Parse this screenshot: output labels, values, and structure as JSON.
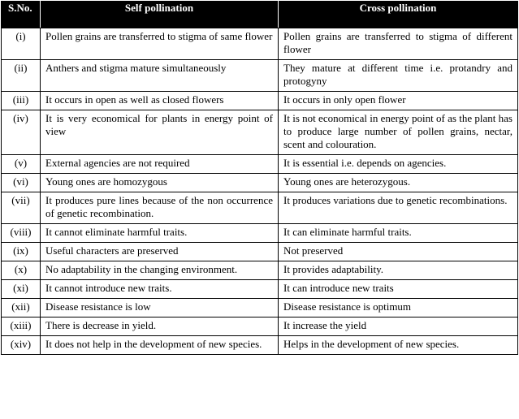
{
  "table": {
    "headers": [
      "S.No.",
      "Self  pollination",
      "Cross pollination"
    ],
    "rows": [
      {
        "sno": "(i)",
        "self": "Pollen grains are transferred to stigma of same flower",
        "cross": "Pollen grains are transferred to stigma of different flower"
      },
      {
        "sno": "(ii)",
        "self": "Anthers and stigma mature simultaneously",
        "cross": "They mature at different time i.e. protandry and protogyny"
      },
      {
        "sno": "(iii)",
        "self": "It occurs in open as well as closed flowers",
        "cross": "It occurs in only open flower"
      },
      {
        "sno": "(iv)",
        "self": "It is very economical for plants in energy point of view",
        "cross": "It is not economical in energy point of as the plant has to produce large number of pollen grains, nectar, scent and colouration."
      },
      {
        "sno": "(v)",
        "self": "External agencies are not required",
        "cross": "It is essential i.e. depends on agencies."
      },
      {
        "sno": "(vi)",
        "self": "Young ones are homozygous",
        "cross": "Young ones are heterozygous."
      },
      {
        "sno": "(vii)",
        "self": "It produces pure lines because of the non occurrence of genetic recombination.",
        "cross": "It produces variations due to genetic recombinations."
      },
      {
        "sno": "(viii)",
        "self": "It cannot eliminate harmful traits.",
        "cross": "It can eliminate harmful traits."
      },
      {
        "sno": "(ix)",
        "self": "Useful characters are preserved",
        "cross": "Not preserved"
      },
      {
        "sno": "(x)",
        "self": "No adaptability in the changing environment.",
        "cross": "It provides adaptability."
      },
      {
        "sno": "(xi)",
        "self": "It cannot introduce new traits.",
        "cross": "It can introduce new traits"
      },
      {
        "sno": "(xii)",
        "self": "Disease resistance is low",
        "cross": "Disease resistance is optimum"
      },
      {
        "sno": "(xiii)",
        "self": "There is decrease in yield.",
        "cross": "It increase the yield"
      },
      {
        "sno": "(xiv)",
        "self": "It does not help in the development of new species.",
        "cross": "Helps in the development of new species."
      }
    ]
  }
}
